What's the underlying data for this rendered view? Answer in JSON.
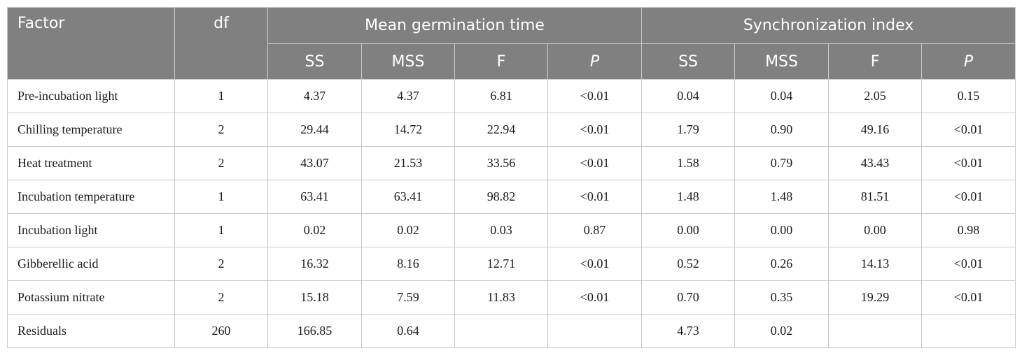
{
  "table": {
    "header": {
      "factor": "Factor",
      "df": "df",
      "group_mgt": "Mean germination time",
      "group_si": "Synchronization index",
      "sub_mgt": [
        "SS",
        "MSS",
        "F",
        "P"
      ],
      "sub_si": [
        "SS",
        "MSS",
        "F",
        "P"
      ]
    },
    "rows": [
      [
        "Pre-incubation light",
        "1",
        "4.37",
        "4.37",
        "6.81",
        "<0.01",
        "0.04",
        "0.04",
        "2.05",
        "0.15"
      ],
      [
        "Chilling temperature",
        "2",
        "29.44",
        "14.72",
        "22.94",
        "<0.01",
        "1.79",
        "0.90",
        "49.16",
        "<0.01"
      ],
      [
        "Heat treatment",
        "2",
        "43.07",
        "21.53",
        "33.56",
        "<0.01",
        "1.58",
        "0.79",
        "43.43",
        "<0.01"
      ],
      [
        "Incubation temperature",
        "1",
        "63.41",
        "63.41",
        "98.82",
        "<0.01",
        "1.48",
        "1.48",
        "81.51",
        "<0.01"
      ],
      [
        "Incubation light",
        "1",
        "0.02",
        "0.02",
        "0.03",
        "0.87",
        "0.00",
        "0.00",
        "0.00",
        "0.98"
      ],
      [
        "Gibberellic acid",
        "2",
        "16.32",
        "8.16",
        "12.71",
        "<0.01",
        "0.52",
        "0.26",
        "14.13",
        "<0.01"
      ],
      [
        "Potassium nitrate",
        "2",
        "15.18",
        "7.59",
        "11.83",
        "<0.01",
        "0.70",
        "0.35",
        "19.29",
        "<0.01"
      ],
      [
        "Residuals",
        "260",
        "166.85",
        "0.64",
        "",
        "",
        "4.73",
        "0.02",
        "",
        ""
      ]
    ]
  }
}
